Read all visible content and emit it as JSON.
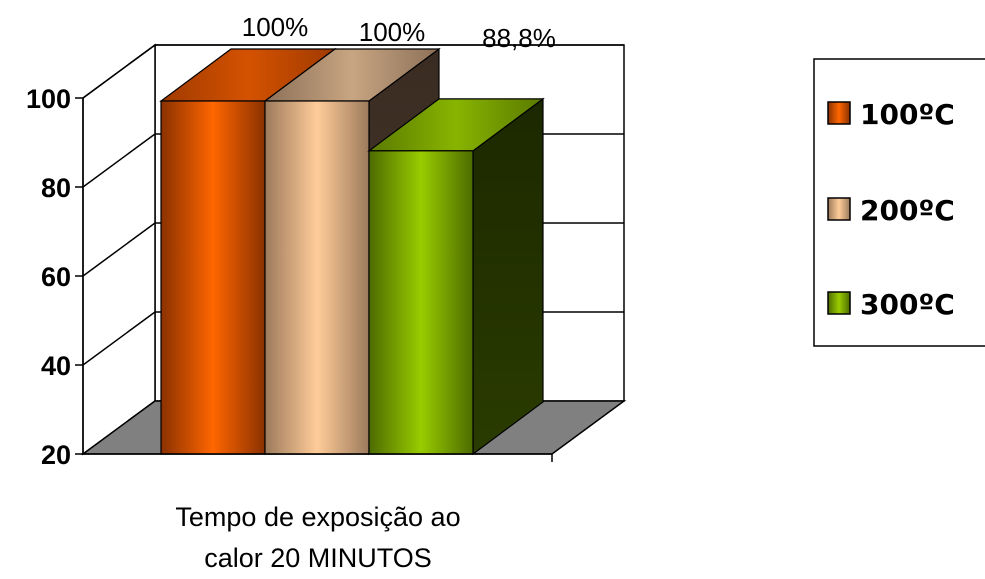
{
  "chart_data": {
    "type": "bar",
    "style": "3d-column",
    "categories": [
      "Tempo de exposição ao calor 20 MINUTOS"
    ],
    "xlabel_lines": [
      "Tempo de exposição ao",
      "calor 20 MINUTOS"
    ],
    "series": [
      {
        "name": "100ºC",
        "values": [
          100
        ],
        "label": "100%",
        "color": "#ff6600"
      },
      {
        "name": "200ºC",
        "values": [
          100
        ],
        "label": "100%",
        "color": "#ffcc99"
      },
      {
        "name": "300ºC",
        "values": [
          88.8
        ],
        "label": "88,8%",
        "color": "#99cc00"
      }
    ],
    "yticks": [
      "20",
      "40",
      "60",
      "80",
      "100"
    ],
    "ylim": [
      20,
      100
    ],
    "grid": true,
    "floor_color": "#808080",
    "legend": {
      "placement": "right",
      "entries": [
        "100ºC",
        "200ºC",
        "300ºC"
      ]
    }
  }
}
